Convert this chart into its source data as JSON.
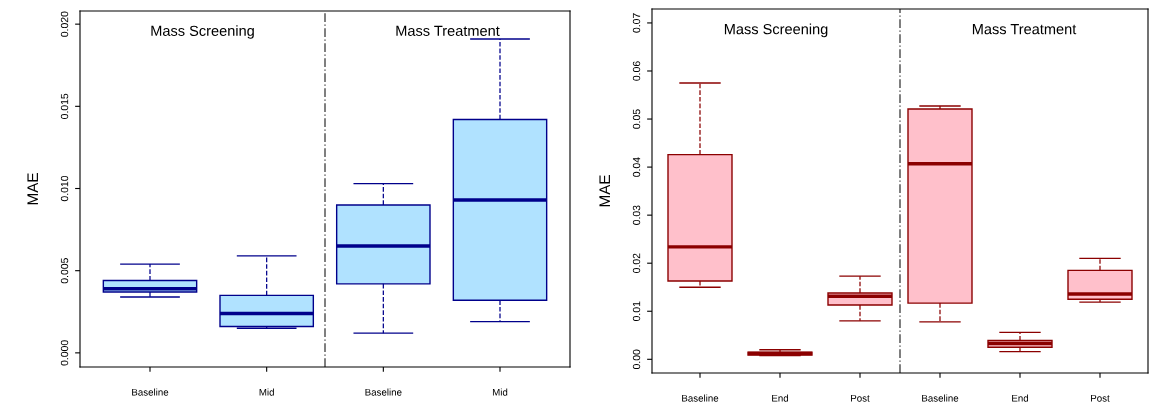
{
  "chart_data": [
    {
      "type": "box",
      "ylabel": "MAE",
      "categories": [
        "Baseline",
        "Mid",
        "Baseline",
        "Mid"
      ],
      "ylim": [
        -0.00086,
        0.0208
      ],
      "yticks": [
        {
          "value": 0,
          "label": "0.000"
        },
        {
          "value": 0.005,
          "label": "0.005"
        },
        {
          "value": 0.01,
          "label": "0.010"
        },
        {
          "value": 0.015,
          "label": "0.015"
        },
        {
          "value": 0.02,
          "label": "0.020"
        }
      ],
      "grid": false,
      "legend": false,
      "series": [
        {
          "color": "#b0e2ff",
          "boxes": [
            {
              "low": 0.0034,
              "q1": 0.0037,
              "median": 0.0039,
              "q3": 0.0044,
              "high": 0.0054
            },
            {
              "low": 0.0015,
              "q1": 0.0016,
              "median": 0.0024,
              "q3": 0.0035,
              "high": 0.0059
            },
            {
              "low": 0.0012,
              "q1": 0.0042,
              "median": 0.0065,
              "q3": 0.009,
              "high": 0.0103
            },
            {
              "low": 0.0019,
              "q1": 0.0032,
              "median": 0.0093,
              "q3": 0.0142,
              "high": 0.0191
            }
          ]
        }
      ],
      "annotations": [
        "Mass Screening",
        "Mass Treatment"
      ]
    },
    {
      "type": "box",
      "ylabel": "MAE",
      "categories": [
        "Baseline",
        "End",
        "Post",
        "Baseline",
        "End",
        "Post"
      ],
      "ylim": [
        -0.00285,
        0.0729
      ],
      "yticks": [
        {
          "value": 0,
          "label": "0.00"
        },
        {
          "value": 0.01,
          "label": "0.01"
        },
        {
          "value": 0.02,
          "label": "0.02"
        },
        {
          "value": 0.03,
          "label": "0.03"
        },
        {
          "value": 0.04,
          "label": "0.04"
        },
        {
          "value": 0.05,
          "label": "0.05"
        },
        {
          "value": 0.06,
          "label": "0.06"
        },
        {
          "value": 0.07,
          "label": "0.07"
        }
      ],
      "grid": false,
      "legend": false,
      "series": [
        {
          "color": "#ffc0cb",
          "boxes": [
            {
              "low": 0.015,
              "q1": 0.0163,
              "median": 0.0234,
              "q3": 0.0426,
              "high": 0.0575
            },
            {
              "low": 0.0008,
              "q1": 0.0009,
              "median": 0.0012,
              "q3": 0.0015,
              "high": 0.002
            },
            {
              "low": 0.008,
              "q1": 0.0113,
              "median": 0.0131,
              "q3": 0.0138,
              "high": 0.0173
            },
            {
              "low": 0.0078,
              "q1": 0.0117,
              "median": 0.0407,
              "q3": 0.0521,
              "high": 0.0527
            },
            {
              "low": 0.0016,
              "q1": 0.0025,
              "median": 0.0033,
              "q3": 0.0039,
              "high": 0.0056
            },
            {
              "low": 0.0119,
              "q1": 0.0125,
              "median": 0.0136,
              "q3": 0.0185,
              "high": 0.021
            }
          ]
        }
      ],
      "annotations": [
        "Mass Screening",
        "Mass Treatment"
      ]
    }
  ]
}
